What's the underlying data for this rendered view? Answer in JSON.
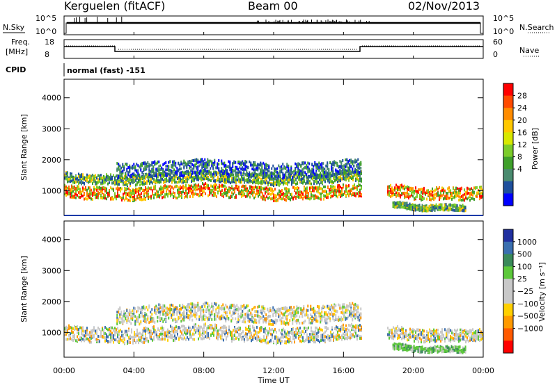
{
  "header": {
    "station": "Kerguelen (fitACF)",
    "beam": "Beam 00",
    "date": "02/Nov/2013"
  },
  "status_panels": {
    "nsky_label": "N.Sky",
    "nsky_top_tick": "10^5",
    "nsky_bottom_tick": "10^0",
    "nsearch_label": "N.Search",
    "nsearch_top_tick": "10^5",
    "nsearch_bottom_tick": "10^0",
    "freq_label": "Freq.",
    "freq_unit": "[MHz]",
    "freq_top_tick": "18",
    "freq_bottom_tick": "8",
    "nave_label": "Nave",
    "nave_top_tick": "60",
    "nave_bottom_tick": "0",
    "cpid_label": "CPID",
    "cpid_value": "normal (fast) -151"
  },
  "power_colorbar": {
    "label": "Power [dB]",
    "ticks": [
      "28",
      "24",
      "20",
      "16",
      "12",
      "8",
      "4"
    ],
    "colors": [
      "#ff0000",
      "#ff4a00",
      "#ff8c00",
      "#ffc800",
      "#d8e800",
      "#7ccc2a",
      "#3fa02b",
      "#4a8b6f",
      "#1e4f9c",
      "#0000ff"
    ]
  },
  "velocity_colorbar": {
    "label": "Velocity [m s⁻¹]",
    "ticks": [
      "1000",
      "500",
      "100",
      "25",
      "−25",
      "−100",
      "−500",
      "−1000"
    ],
    "colors": [
      "#2030a0",
      "#3a6fb0",
      "#3a8a5a",
      "#5cc83a",
      "#c8c8c8",
      "#c8c8c8",
      "#ffd000",
      "#ff9a00",
      "#ff5a00",
      "#ff0000"
    ]
  },
  "axes": {
    "y_label": "Slant Range [km]",
    "y_ticks": [
      "4000",
      "3000",
      "2000",
      "1000"
    ],
    "x_label": "Time UT",
    "x_ticks": [
      "00:00",
      "04:00",
      "08:00",
      "12:00",
      "16:00",
      "20:00",
      "00:00"
    ]
  },
  "chart_data": [
    {
      "type": "heatmap",
      "quantity": "Power",
      "x_range_hours": [
        0,
        24
      ],
      "ylim": [
        200,
        4600
      ],
      "bands": [
        {
          "t0": 0.0,
          "t1": 17.0,
          "range_center": 950,
          "range_width": 250,
          "level": "high"
        },
        {
          "t0": 0.0,
          "t1": 17.0,
          "range_center": 1400,
          "range_width": 200,
          "level": "medium"
        },
        {
          "t0": 3.0,
          "t1": 17.0,
          "range_center": 1700,
          "range_width": 300,
          "level": "low"
        },
        {
          "t0": 18.5,
          "t1": 24.0,
          "range_center": 950,
          "range_width": 250,
          "level": "high"
        },
        {
          "t0": 18.8,
          "t1": 23.0,
          "range_center": 500,
          "range_width": 120,
          "level": "medium"
        }
      ]
    },
    {
      "type": "heatmap",
      "quantity": "Velocity",
      "x_range_hours": [
        0,
        24
      ],
      "ylim": [
        200,
        4600
      ],
      "bands": [
        {
          "t0": 0.0,
          "t1": 17.0,
          "range_center": 950,
          "range_width": 300,
          "level": "near-zero"
        },
        {
          "t0": 3.0,
          "t1": 17.0,
          "range_center": 1600,
          "range_width": 350,
          "level": "near-zero"
        },
        {
          "t0": 18.5,
          "t1": 24.0,
          "range_center": 950,
          "range_width": 250,
          "level": "near-zero"
        },
        {
          "t0": 18.8,
          "t1": 23.0,
          "range_center": 500,
          "range_width": 120,
          "level": "positive"
        }
      ]
    }
  ]
}
